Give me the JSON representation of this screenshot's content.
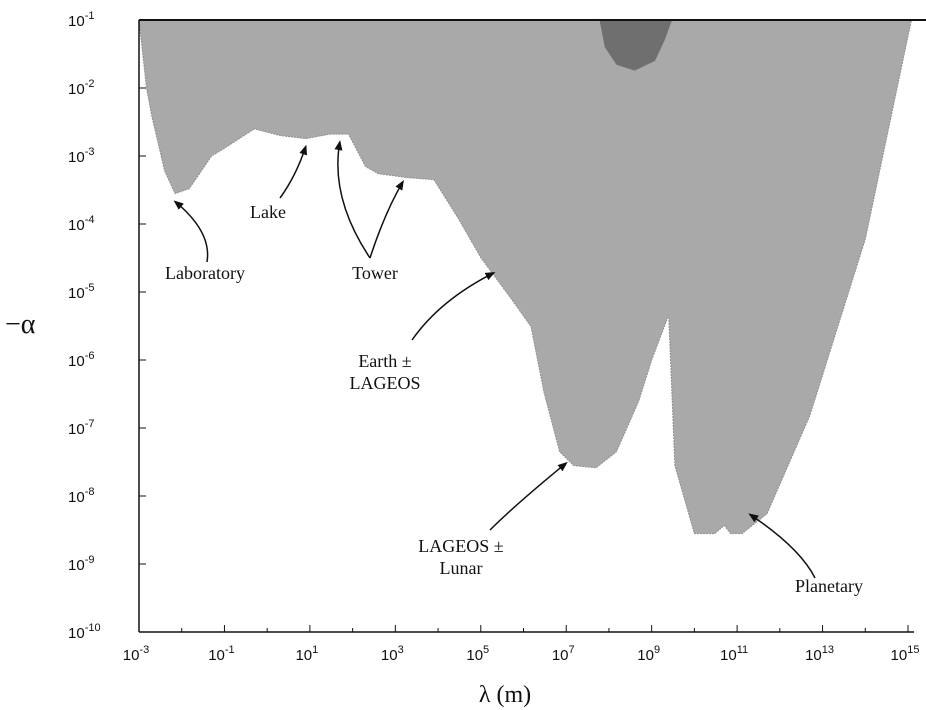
{
  "chart_data": {
    "type": "area",
    "title": "",
    "xlabel": "λ (m)",
    "ylabel": "−α",
    "x_scale": "log",
    "y_scale": "log",
    "xlim": [
      0.001,
      1000000000000000.0
    ],
    "ylim": [
      1e-10,
      0.1
    ],
    "x_ticks": [
      {
        "base": "10",
        "exp": "-3",
        "value": 0.001
      },
      {
        "base": "10",
        "exp": "-1",
        "value": 0.1
      },
      {
        "base": "10",
        "exp": "1",
        "value": 10
      },
      {
        "base": "10",
        "exp": "3",
        "value": 1000
      },
      {
        "base": "10",
        "exp": "5",
        "value": 100000
      },
      {
        "base": "10",
        "exp": "7",
        "value": 10000000.0
      },
      {
        "base": "10",
        "exp": "9",
        "value": 1000000000.0
      },
      {
        "base": "10",
        "exp": "11",
        "value": 100000000000.0
      },
      {
        "base": "10",
        "exp": "13",
        "value": 10000000000000.0
      },
      {
        "base": "10",
        "exp": "15",
        "value": 1000000000000000.0
      }
    ],
    "y_ticks": [
      {
        "base": "10",
        "exp": "-1",
        "value": 0.1
      },
      {
        "base": "10",
        "exp": "-2",
        "value": 0.01
      },
      {
        "base": "10",
        "exp": "-3",
        "value": 0.001
      },
      {
        "base": "10",
        "exp": "-4",
        "value": 0.0001
      },
      {
        "base": "10",
        "exp": "-5",
        "value": 1e-05
      },
      {
        "base": "10",
        "exp": "-6",
        "value": 1e-06
      },
      {
        "base": "10",
        "exp": "-7",
        "value": 1e-07
      },
      {
        "base": "10",
        "exp": "-8",
        "value": 1e-08
      },
      {
        "base": "10",
        "exp": "-9",
        "value": 1e-09
      },
      {
        "base": "10",
        "exp": "-10",
        "value": 1e-10
      }
    ],
    "excluded_region_boundary": [
      [
        0.001,
        0.1
      ],
      [
        0.0015,
        0.01
      ],
      [
        0.002,
        0.0038
      ],
      [
        0.004,
        0.0006
      ],
      [
        0.007,
        0.00028
      ],
      [
        0.015,
        0.00033
      ],
      [
        0.05,
        0.001
      ],
      [
        0.1,
        0.0013
      ],
      [
        0.5,
        0.0025
      ],
      [
        2,
        0.002
      ],
      [
        8,
        0.0018
      ],
      [
        30,
        0.0021
      ],
      [
        80,
        0.0021
      ],
      [
        200,
        0.0007
      ],
      [
        400,
        0.00055
      ],
      [
        2000,
        0.00048
      ],
      [
        8000,
        0.00045
      ],
      [
        30000,
        0.00012
      ],
      [
        100000,
        3.2e-05
      ],
      [
        500000,
        8.2e-06
      ],
      [
        1500000,
        3.1e-06
      ],
      [
        3000000,
        3.4e-07
      ],
      [
        7000000,
        4.5e-08
      ],
      [
        15000000,
        2.8e-08
      ],
      [
        50000000,
        2.6e-08
      ],
      [
        150000000,
        4.5e-08
      ],
      [
        500000000,
        2.5e-07
      ],
      [
        1000000000,
        1e-06
      ],
      [
        2500000000,
        4.6e-06
      ],
      [
        3500000000,
        2.8e-08
      ],
      [
        10000000000,
        2.8e-09
      ],
      [
        30000000000,
        2.8e-09
      ],
      [
        50000000000,
        3.7e-09
      ],
      [
        70000000000,
        2.8e-09
      ],
      [
        130000000000,
        2.8e-09
      ],
      [
        500000000000,
        5.5e-09
      ],
      [
        5000000000000.0,
        1.5e-07
      ],
      [
        100000000000000.0,
        6e-05
      ],
      [
        1200000000000000.0,
        0.1
      ]
    ],
    "dark_region": [
      [
        60000000,
        0.1
      ],
      [
        80000000,
        0.04
      ],
      [
        150000000,
        0.022
      ],
      [
        400000000,
        0.018
      ],
      [
        1200000000,
        0.025
      ],
      [
        2000000000,
        0.05
      ],
      [
        3000000000,
        0.1
      ]
    ],
    "colors": {
      "excluded": "#a9a9a9",
      "dark_region": "#6f6f6f",
      "axis": "#111111",
      "annotation": "#111111"
    },
    "annotations": [
      {
        "id": "laboratory",
        "lines": [
          "Laboratory"
        ],
        "point": [
          0.007,
          0.00028
        ]
      },
      {
        "id": "lake",
        "lines": [
          "Lake"
        ],
        "point": [
          8,
          0.0018
        ]
      },
      {
        "id": "tower",
        "lines": [
          "Tower"
        ],
        "points": [
          [
            50,
            0.0021
          ],
          [
            1500,
            0.00055
          ]
        ]
      },
      {
        "id": "earth-lageos",
        "lines": [
          "Earth ±",
          "LAGEOS"
        ],
        "point": [
          200000,
          2.5e-05
        ]
      },
      {
        "id": "lageos-lunar",
        "lines": [
          "LAGEOS ±",
          "Lunar"
        ],
        "point": [
          10000000,
          4e-08
        ]
      },
      {
        "id": "planetary",
        "lines": [
          "Planetary"
        ],
        "point": [
          200000000000,
          7e-09
        ]
      }
    ]
  }
}
